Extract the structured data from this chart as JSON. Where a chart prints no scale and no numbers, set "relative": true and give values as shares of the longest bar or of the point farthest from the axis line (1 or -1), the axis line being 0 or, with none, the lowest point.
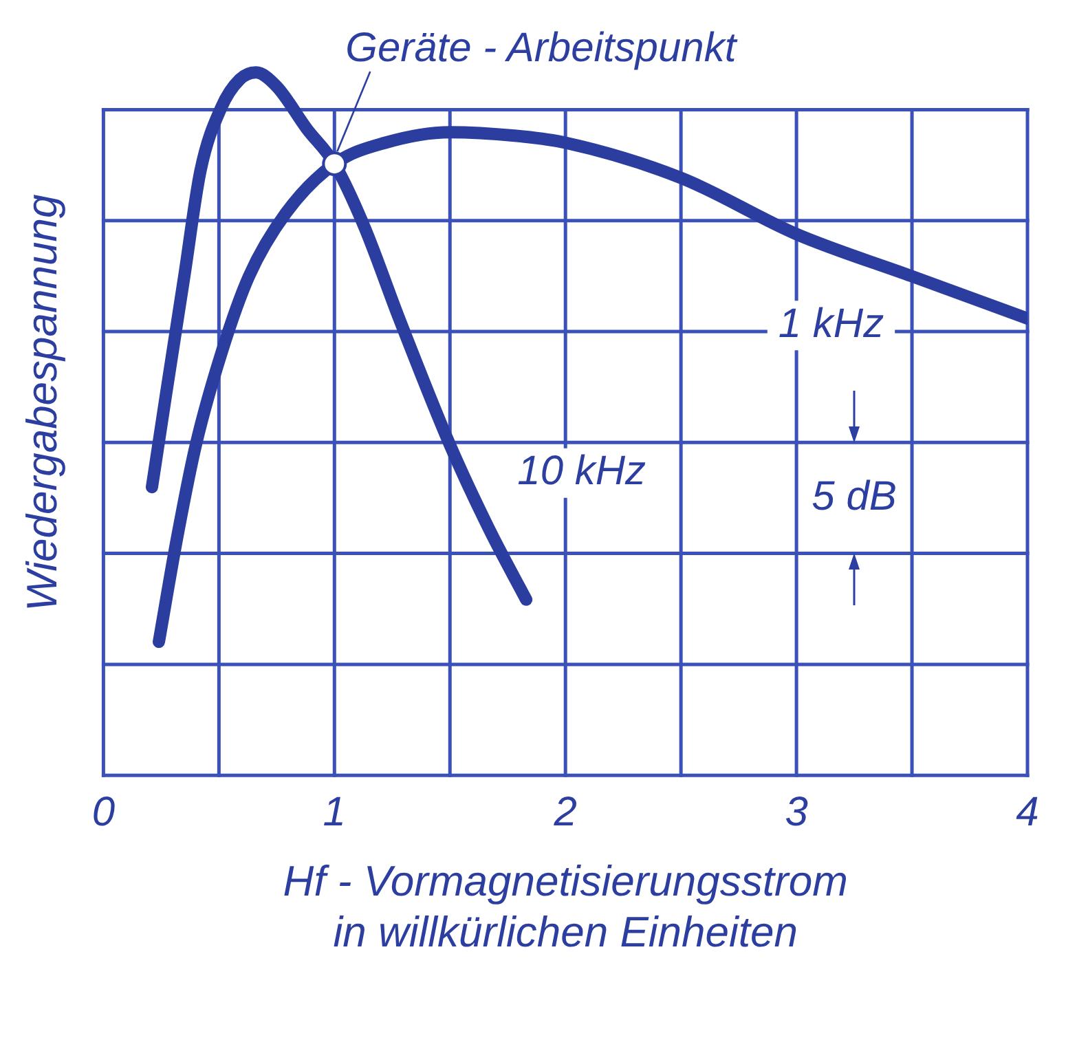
{
  "chart_data": {
    "type": "line",
    "relative": true,
    "xlabel": "Hf - Vormagnetisierungsstrom\nin willkürlichen Einheiten",
    "ylabel": "Wiedergabespannung",
    "xlim": [
      0,
      4
    ],
    "xticks": [
      0,
      {
        "value": 0.5,
        "label": null
      },
      1,
      {
        "value": 1.5,
        "label": null
      },
      2,
      {
        "value": 2.5,
        "label": null
      },
      3,
      {
        "value": 3.5,
        "label": null
      },
      4
    ],
    "grid": true,
    "legend": false,
    "marker": "none",
    "line_style": "solid",
    "series": [
      {
        "name": "10 kHz",
        "color": "#2b3ea0",
        "x": [
          0.21,
          0.27,
          0.35,
          0.42,
          0.51,
          0.59,
          0.66,
          0.75,
          0.88,
          1.0,
          1.13,
          1.28,
          1.5,
          1.67,
          1.83
        ],
        "values": [
          0.41,
          0.54,
          0.71,
          0.86,
          0.95,
          0.99,
          1.0,
          0.98,
          0.92,
          0.87,
          0.78,
          0.65,
          0.47,
          0.35,
          0.25
        ]
      },
      {
        "name": "1 kHz",
        "color": "#2b3ea0",
        "x": [
          0.24,
          0.32,
          0.4,
          0.51,
          0.63,
          0.79,
          1.0,
          1.22,
          1.5,
          1.78,
          2.0,
          2.5,
          3.0,
          3.5,
          4.0
        ],
        "values": [
          0.19,
          0.34,
          0.47,
          0.6,
          0.71,
          0.8,
          0.87,
          0.9,
          0.915,
          0.91,
          0.9,
          0.85,
          0.77,
          0.71,
          0.65
        ]
      }
    ],
    "annotations": [
      {
        "text": "Geräte - Arbeitspunkt",
        "x": 1,
        "y": 0.87
      },
      "5 dB"
    ]
  }
}
